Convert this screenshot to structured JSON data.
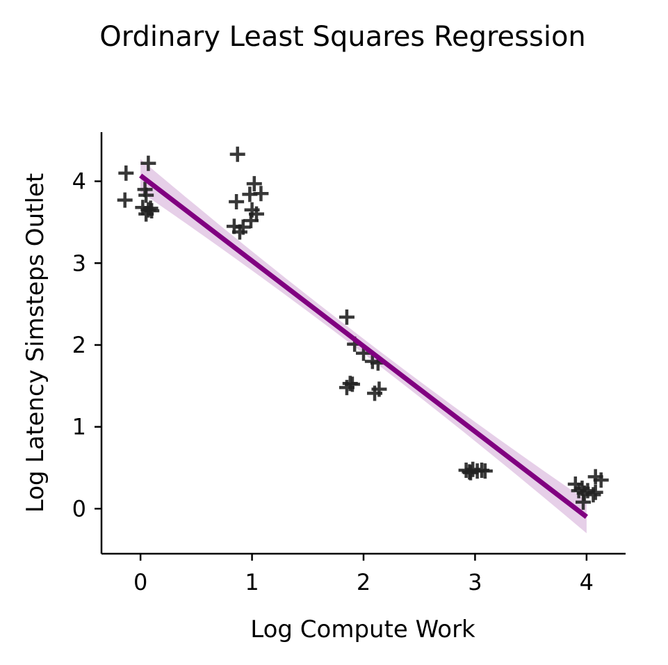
{
  "chart_data": {
    "type": "scatter",
    "title": "Ordinary Least Squares Regression",
    "xlabel": "Log Compute Work",
    "ylabel": "Log Latency Simsteps Outlet",
    "xlim": [
      -0.35,
      4.35
    ],
    "ylim": [
      -0.55,
      4.6
    ],
    "xticks": [
      0,
      1,
      2,
      3,
      4
    ],
    "yticks": [
      0,
      1,
      2,
      3,
      4
    ],
    "grid": false,
    "marker": "+",
    "point_color": "#222222",
    "fit_color": "#800080",
    "band_color": "#e6cfe8",
    "fit": {
      "x_start": 0.0,
      "y_start": 4.07,
      "x_end": 4.0,
      "y_end": -0.1
    },
    "band": {
      "half_width_at_ends": 0.2,
      "half_width_at_center": 0.09
    },
    "points": [
      {
        "x": -0.13,
        "y": 4.1
      },
      {
        "x": -0.14,
        "y": 3.77
      },
      {
        "x": 0.07,
        "y": 4.22
      },
      {
        "x": 0.04,
        "y": 3.9
      },
      {
        "x": 0.05,
        "y": 3.83
      },
      {
        "x": 0.02,
        "y": 3.68
      },
      {
        "x": 0.05,
        "y": 3.6
      },
      {
        "x": 0.07,
        "y": 3.65
      },
      {
        "x": 0.09,
        "y": 3.67
      },
      {
        "x": 0.1,
        "y": 3.64
      },
      {
        "x": 0.87,
        "y": 4.33
      },
      {
        "x": 0.86,
        "y": 3.75
      },
      {
        "x": 0.84,
        "y": 3.45
      },
      {
        "x": 0.89,
        "y": 3.38
      },
      {
        "x": 0.92,
        "y": 3.44
      },
      {
        "x": 0.98,
        "y": 3.84
      },
      {
        "x": 1.02,
        "y": 3.97
      },
      {
        "x": 1.08,
        "y": 3.85
      },
      {
        "x": 1.0,
        "y": 3.65
      },
      {
        "x": 1.04,
        "y": 3.6
      },
      {
        "x": 0.99,
        "y": 3.52
      },
      {
        "x": 1.85,
        "y": 2.34
      },
      {
        "x": 1.92,
        "y": 2.01
      },
      {
        "x": 2.0,
        "y": 1.9
      },
      {
        "x": 2.08,
        "y": 1.8
      },
      {
        "x": 2.13,
        "y": 1.78
      },
      {
        "x": 1.88,
        "y": 1.53
      },
      {
        "x": 1.85,
        "y": 1.48
      },
      {
        "x": 1.9,
        "y": 1.52
      },
      {
        "x": 2.1,
        "y": 1.41
      },
      {
        "x": 2.14,
        "y": 1.46
      },
      {
        "x": 2.92,
        "y": 0.47
      },
      {
        "x": 2.95,
        "y": 0.45
      },
      {
        "x": 2.98,
        "y": 0.48
      },
      {
        "x": 3.02,
        "y": 0.46
      },
      {
        "x": 3.06,
        "y": 0.47
      },
      {
        "x": 3.09,
        "y": 0.46
      },
      {
        "x": 2.96,
        "y": 0.44
      },
      {
        "x": 3.9,
        "y": 0.3
      },
      {
        "x": 3.93,
        "y": 0.22
      },
      {
        "x": 3.96,
        "y": 0.25
      },
      {
        "x": 3.98,
        "y": 0.19
      },
      {
        "x": 4.01,
        "y": 0.22
      },
      {
        "x": 3.97,
        "y": 0.08
      },
      {
        "x": 4.06,
        "y": 0.17
      },
      {
        "x": 4.08,
        "y": 0.39
      },
      {
        "x": 4.13,
        "y": 0.35
      },
      {
        "x": 4.08,
        "y": 0.2
      }
    ]
  }
}
